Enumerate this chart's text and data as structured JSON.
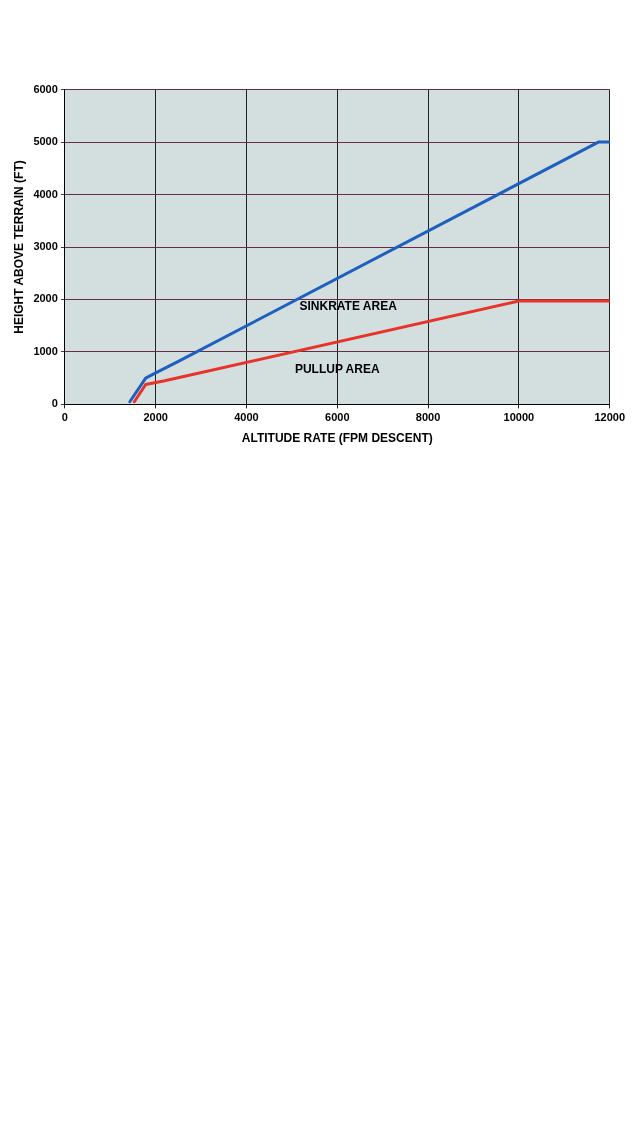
{
  "chart_data": {
    "type": "line",
    "xlabel": "ALTITUDE RATE (FPM DESCENT)",
    "ylabel": "HEIGHT ABOVE TERRAIN (FT)",
    "series": [
      {
        "color": "#1f5fbf",
        "x": [
          1430,
          1780,
          2000,
          2500,
          11750,
          12000
        ],
        "values": [
          50,
          500,
          600,
          820,
          5000,
          5000
        ]
      },
      {
        "color": "#e8332a",
        "x": [
          1530,
          1780,
          2200,
          10000,
          12000
        ],
        "values": [
          50,
          380,
          450,
          1970,
          1970
        ]
      }
    ],
    "xlim": [
      0,
      12000
    ],
    "xticks": [
      0,
      2000,
      4000,
      6000,
      8000,
      10000,
      12000
    ],
    "ylim": [
      0,
      6000
    ],
    "yticks": [
      0,
      1000,
      2000,
      3000,
      4000,
      5000,
      6000
    ],
    "grid": true,
    "marker": "none",
    "line_style": "solid",
    "annotations": [
      "SINKRATE AREA",
      "PULLUP AREA"
    ]
  }
}
